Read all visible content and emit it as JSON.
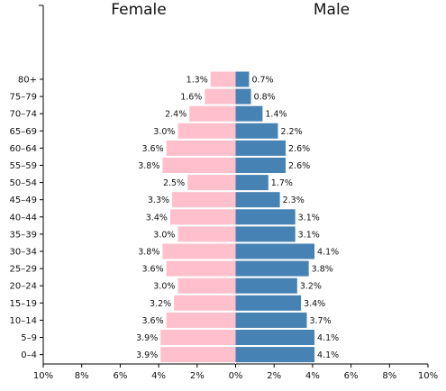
{
  "chart_data": {
    "type": "bar",
    "orientation": "horizontal",
    "title": "",
    "xlabel": "",
    "ylabel": "",
    "headers": {
      "left": "Female",
      "right": "Male"
    },
    "categories": [
      "80+",
      "75-79",
      "70-74",
      "65-69",
      "60-64",
      "55-59",
      "50-54",
      "45-49",
      "40-44",
      "35-39",
      "30-34",
      "25-29",
      "20-24",
      "15-19",
      "10-14",
      "5-9",
      "0-4"
    ],
    "series": [
      {
        "name": "Female",
        "values": [
          1.3,
          1.6,
          2.4,
          3.0,
          3.6,
          3.8,
          2.5,
          3.3,
          3.4,
          3.0,
          3.8,
          3.6,
          3.0,
          3.2,
          3.6,
          3.9,
          3.9
        ]
      },
      {
        "name": "Male",
        "values": [
          0.7,
          0.8,
          1.4,
          2.2,
          2.6,
          2.6,
          1.7,
          2.3,
          3.1,
          3.1,
          4.1,
          3.8,
          3.2,
          3.4,
          3.7,
          4.1,
          4.1
        ]
      }
    ],
    "value_labels": {
      "female": [
        "1.3%",
        "1.6%",
        "2.4%",
        "3.0%",
        "3.6%",
        "3.8%",
        "2.5%",
        "3.3%",
        "3.4%",
        "3.0%",
        "3.8%",
        "3.6%",
        "3.0%",
        "3.2%",
        "3.6%",
        "3.9%",
        "3.9%"
      ],
      "male": [
        "0.7%",
        "0.8%",
        "1.4%",
        "2.2%",
        "2.6%",
        "2.6%",
        "1.7%",
        "2.3%",
        "3.1%",
        "3.1%",
        "4.1%",
        "3.8%",
        "3.2%",
        "3.4%",
        "3.7%",
        "4.1%",
        "4.1%"
      ]
    },
    "xlim": [
      -10,
      10
    ],
    "xticks": [
      -10,
      -8,
      -6,
      -4,
      -2,
      0,
      2,
      4,
      6,
      8,
      10
    ],
    "xtick_labels": [
      "10%",
      "8%",
      "6%",
      "4%",
      "2%",
      "0%",
      "2%",
      "4%",
      "6%",
      "8%",
      "10%"
    ],
    "colors": {
      "female": "#ffc0cb",
      "male": "#4682b4"
    },
    "grid": false,
    "legend": "none"
  }
}
